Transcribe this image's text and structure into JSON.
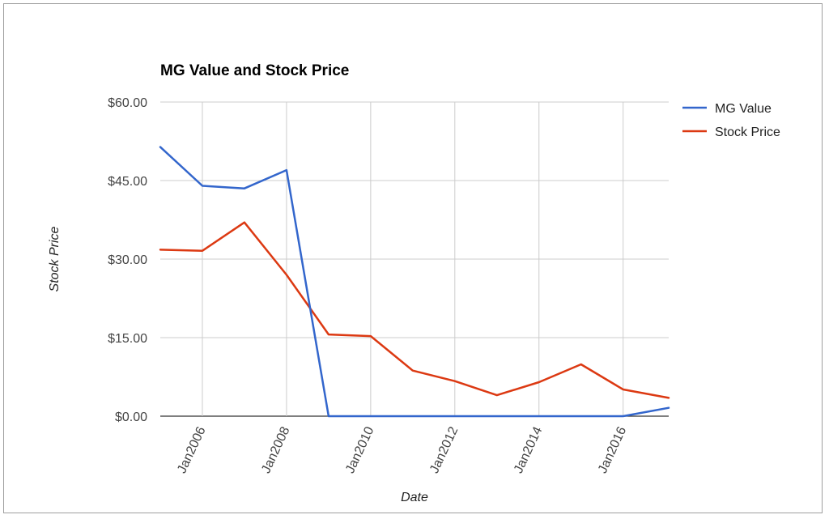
{
  "chart_data": {
    "type": "line",
    "title": "MG Value and Stock Price",
    "xlabel": "Date",
    "ylabel": "Stock Price",
    "ylim": [
      0,
      60
    ],
    "y_ticks": [
      "$0.00",
      "$15.00",
      "$30.00",
      "$45.00",
      "$60.00"
    ],
    "y_tick_values": [
      0,
      15,
      30,
      45,
      60
    ],
    "xlim": [
      "2005-01",
      "2017-02"
    ],
    "x_ticks": [
      "Jan2006",
      "Jan2008",
      "Jan2010",
      "Jan2012",
      "Jan2014",
      "Jan2016"
    ],
    "x_tick_values": [
      "2006-01",
      "2008-01",
      "2010-01",
      "2012-01",
      "2014-01",
      "2016-01"
    ],
    "grid": true,
    "legend_position": "right",
    "series": [
      {
        "name": "MG Value",
        "color": "#3366cc",
        "points": [
          [
            "2005-01",
            51.4
          ],
          [
            "2006-01",
            44.0
          ],
          [
            "2007-01",
            43.5
          ],
          [
            "2008-01",
            47.0
          ],
          [
            "2009-01",
            0
          ],
          [
            "2010-01",
            0
          ],
          [
            "2011-01",
            0
          ],
          [
            "2012-01",
            0
          ],
          [
            "2013-01",
            0
          ],
          [
            "2014-01",
            0
          ],
          [
            "2015-01",
            0
          ],
          [
            "2016-01",
            0
          ],
          [
            "2017-02",
            1.6
          ]
        ]
      },
      {
        "name": "Stock Price",
        "color": "#dc3912",
        "points": [
          [
            "2005-01",
            31.8
          ],
          [
            "2006-01",
            31.6
          ],
          [
            "2007-01",
            37.0
          ],
          [
            "2008-01",
            27.0
          ],
          [
            "2009-01",
            15.6
          ],
          [
            "2010-01",
            15.3
          ],
          [
            "2011-01",
            8.7
          ],
          [
            "2012-01",
            6.7
          ],
          [
            "2013-01",
            4.0
          ],
          [
            "2014-01",
            6.5
          ],
          [
            "2015-01",
            9.9
          ],
          [
            "2016-01",
            5.1
          ],
          [
            "2017-02",
            3.5
          ]
        ]
      }
    ]
  }
}
